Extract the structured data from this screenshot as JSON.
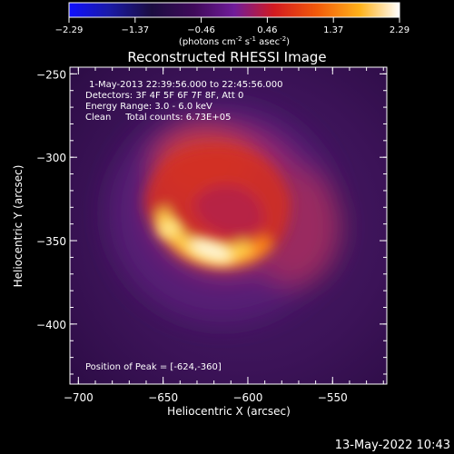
{
  "chart_data": {
    "type": "heatmap",
    "title": "Reconstructed RHESSI Image",
    "colorbar": {
      "ticks": [
        "-2.29",
        "-1.37",
        "-0.46",
        "0.46",
        "1.37",
        "2.29"
      ],
      "range": [
        -2.29,
        2.29
      ],
      "units_prefix": "(photons cm",
      "units_exp1": "-2",
      "units_mid": " s",
      "units_exp2": "-1",
      "units_suffix": " asec",
      "units_exp3": "-2",
      "units_close": ")"
    },
    "annotations": [
      "1-May-2013 22:39:56.000 to 22:45:56.000",
      "Detectors: 3F 4F 5F 6F 7F 8F, Att 0",
      "Energy Range: 3.0 - 6.0 keV",
      "Clean     Total counts: 6.73E+05"
    ],
    "peak_label": "Position of Peak = [-624,-360]",
    "xlabel": "Heliocentric X (arcsec)",
    "ylabel": "Heliocentric Y (arcsec)",
    "xlim": [
      -705,
      -518
    ],
    "ylim": [
      -436,
      -246
    ],
    "xticks": [
      {
        "v": -700,
        "label": "−700"
      },
      {
        "v": -650,
        "label": "−650"
      },
      {
        "v": -600,
        "label": "−600"
      },
      {
        "v": -550,
        "label": "−550"
      }
    ],
    "yticks": [
      {
        "v": -250,
        "label": "−250"
      },
      {
        "v": -300,
        "label": "−300"
      },
      {
        "v": -350,
        "label": "−350"
      },
      {
        "v": -400,
        "label": "−400"
      }
    ],
    "grid": false,
    "colormap": "black-purple-red-orange-yellow-white",
    "source_features": [
      {
        "name": "peak",
        "x": -624,
        "y": -360,
        "value": 2.29
      }
    ]
  },
  "footer_date": "13-May-2022 10:43"
}
